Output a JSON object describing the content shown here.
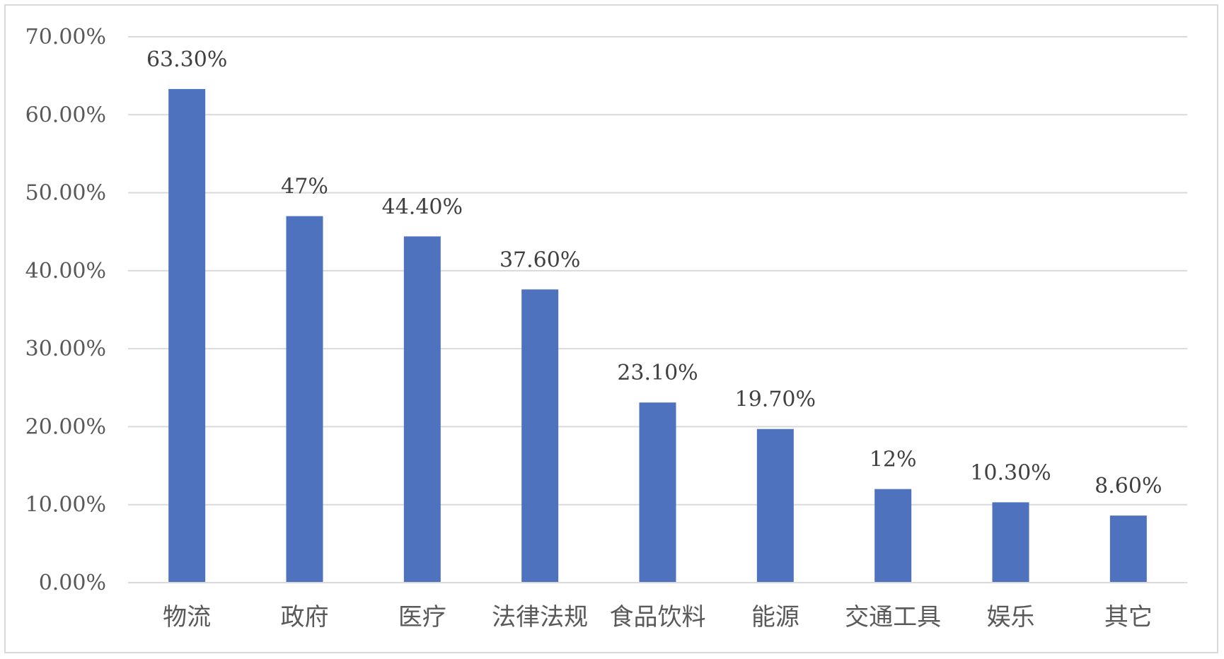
{
  "chart_data": {
    "type": "bar",
    "categories": [
      "物流",
      "政府",
      "医疗",
      "法律法规",
      "食品饮料",
      "能源",
      "交通工具",
      "娱乐",
      "其它"
    ],
    "values": [
      63.3,
      47,
      44.4,
      37.6,
      23.1,
      19.7,
      12,
      10.3,
      8.6
    ],
    "data_labels": [
      "63.30%",
      "47%",
      "44.40%",
      "37.60%",
      "23.10%",
      "19.70%",
      "12%",
      "10.30%",
      "8.60%"
    ],
    "y_ticks": [
      0,
      10,
      20,
      30,
      40,
      50,
      60,
      70
    ],
    "y_tick_labels": [
      "0.00%",
      "10.00%",
      "20.00%",
      "30.00%",
      "40.00%",
      "50.00%",
      "60.00%",
      "70.00%"
    ],
    "ylim": [
      0,
      70
    ],
    "grid": true,
    "legend": "none",
    "bar_color": "#4f72bf",
    "grid_color": "#d9d9d9"
  }
}
